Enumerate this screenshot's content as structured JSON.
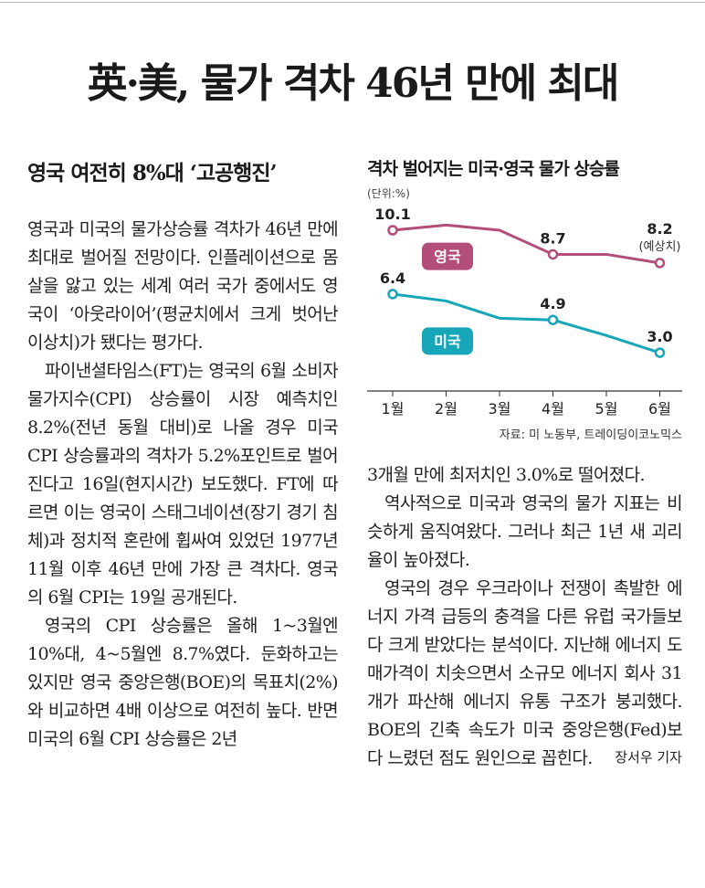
{
  "headline": "英·美, 물가 격차 46년 만에 최대",
  "subhead": "영국 여전히 8%대 ‘고공행진’",
  "left_paragraphs": [
    "영국과 미국의 물가상승률 격차가 46년 만에 최대로 벌어질 전망이다. 인플레이션으로 몸살을 앓고 있는 세계 여러 국가 중에서도 영국이 ‘아웃라이어’(평균치에서 크게 벗어난 이상치)가 됐다는 평가다.",
    "파이낸셜타임스(FT)는 영국의 6월 소비자물가지수(CPI) 상승률이 시장 예측치인 8.2%(전년 동월 대비)로 나올 경우 미국 CPI 상승률과의 격차가 5.2%포인트로 벌어진다고 16일(현지시간) 보도했다. FT에 따르면 이는 영국이 스태그네이션(장기 경기 침체)과 정치적 혼란에 휩싸여 있었던 1977년 11월 이후 46년 만에 가장 큰 격차다. 영국의 6월 CPI는 19일 공개된다.",
    "영국의 CPI 상승률은 올해 1~3월엔 10%대, 4~5월엔 8.7%였다. 둔화하고는 있지만 영국 중앙은행(BOE)의 목표치(2%)와 비교하면 4배 이상으로 여전히 높다. 반면 미국의 6월 CPI 상승률은 2년"
  ],
  "right_paragraphs": [
    "3개월 만에 최저치인 3.0%로 떨어졌다.",
    "역사적으로 미국과 영국의 물가 지표는 비슷하게 움직여왔다. 그러나 최근 1년 새 괴리율이 높아졌다.",
    "영국의 경우 우크라이나 전쟁이 촉발한 에너지 가격 급등의 충격을 다른 유럽 국가들보다 크게 받았다는 분석이다. 지난해 에너지 도매가격이 치솟으면서 소규모 에너지 회사 31개가 파산해 에너지 유통 구조가 붕괴했다. BOE의 긴축 속도가 미국 중앙은행(Fed)보다 느렸던 점도 원인으로 꼽힌다."
  ],
  "byline": "장서우 기자",
  "chart_data": {
    "type": "line",
    "title": "격차 벌어지는 미국·영국 물가 상승률",
    "unit_label": "(단위:%)",
    "source": "자료: 미 노동부, 트레이딩이코노믹스",
    "categories": [
      "1월",
      "2월",
      "3월",
      "4월",
      "5월",
      "6월"
    ],
    "ylim": [
      2,
      11
    ],
    "grid": false,
    "series": [
      {
        "name": "영국",
        "color": "#b34d79",
        "values": [
          10.1,
          10.4,
          10.1,
          8.7,
          8.7,
          8.2
        ],
        "labels": [
          "10.1",
          "",
          "",
          "8.7",
          "",
          "8.2"
        ]
      },
      {
        "name": "미국",
        "color": "#17a6b8",
        "values": [
          6.4,
          6.0,
          5.0,
          4.9,
          4.0,
          3.0
        ],
        "labels": [
          "6.4",
          "",
          "",
          "4.9",
          "",
          "3.0"
        ]
      }
    ],
    "annotation": "(예상치)"
  }
}
